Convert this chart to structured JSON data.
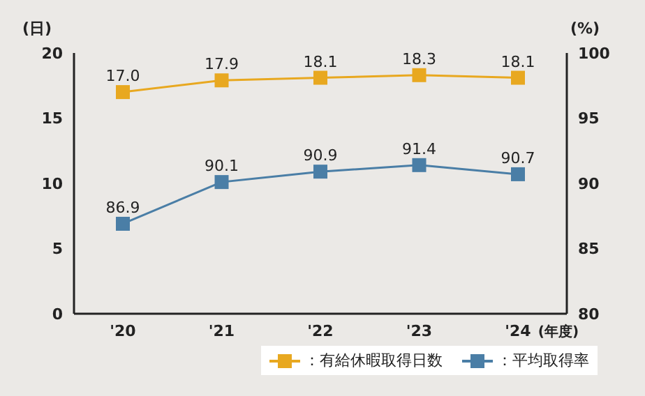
{
  "chart_data": {
    "type": "line",
    "categories": [
      "'20",
      "'21",
      "'22",
      "'23",
      "'24"
    ],
    "xlabel": "(年度)",
    "ylabel": "(日)",
    "y2label": "(%)",
    "series": [
      {
        "name": "：有給休暇取得日数",
        "color": "#e8a820",
        "values": [
          17.0,
          17.9,
          18.1,
          18.3,
          18.1
        ],
        "value_labels": [
          "17.0",
          "17.9",
          "18.1",
          "18.3",
          "18.1"
        ]
      },
      {
        "name": "：平均取得率",
        "color": "#4a7ea6",
        "axis": "y2",
        "values": [
          86.9,
          90.1,
          90.9,
          91.4,
          90.7
        ],
        "value_labels": [
          "86.9",
          "90.1",
          "90.9",
          "91.4",
          "90.7"
        ]
      }
    ],
    "ylim": [
      0,
      20
    ],
    "yticks": [
      0,
      5,
      10,
      15,
      20
    ],
    "y2lim": [
      80,
      100
    ],
    "y2ticks": [
      80,
      85,
      90,
      95,
      100
    ],
    "grid": false,
    "legend": "bottom right",
    "marker": "square",
    "line_style": "solid"
  }
}
